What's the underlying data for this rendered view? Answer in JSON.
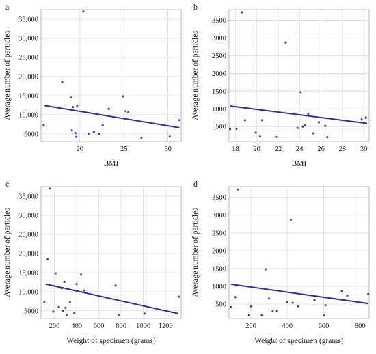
{
  "chart_data": [
    {
      "panel_label": "a",
      "type": "scatter",
      "xlabel": "BMI",
      "ylabel": "Average number of particles",
      "xlim": [
        15.6,
        31.5
      ],
      "ylim": [
        3000,
        37500
      ],
      "xticks": [
        20,
        25,
        30
      ],
      "yticks": [
        5000,
        10000,
        15000,
        20000,
        25000,
        30000,
        35000
      ],
      "xtick_labels": [
        "20",
        "25",
        "30"
      ],
      "ytick_labels": [
        "5000",
        "10,000",
        "15,000",
        "20,000",
        "25,000",
        "30,000",
        "35,000"
      ],
      "grid": true,
      "point_color": "#3a42c7",
      "line_color": "#2a2fa0",
      "points": [
        {
          "x": 15.9,
          "y": 7200
        },
        {
          "x": 18.0,
          "y": 18500
        },
        {
          "x": 19.0,
          "y": 14500
        },
        {
          "x": 19.2,
          "y": 12000
        },
        {
          "x": 19.1,
          "y": 5900
        },
        {
          "x": 19.5,
          "y": 5200
        },
        {
          "x": 19.6,
          "y": 4200
        },
        {
          "x": 19.7,
          "y": 12400
        },
        {
          "x": 20.4,
          "y": 37000
        },
        {
          "x": 21.0,
          "y": 5000
        },
        {
          "x": 21.6,
          "y": 5500
        },
        {
          "x": 22.2,
          "y": 5000
        },
        {
          "x": 22.6,
          "y": 7200
        },
        {
          "x": 23.3,
          "y": 11500
        },
        {
          "x": 24.9,
          "y": 14800
        },
        {
          "x": 25.2,
          "y": 10900
        },
        {
          "x": 25.5,
          "y": 10600
        },
        {
          "x": 27.0,
          "y": 4000
        },
        {
          "x": 30.2,
          "y": 4300
        },
        {
          "x": 31.3,
          "y": 8600
        }
      ],
      "fit_line": [
        {
          "x": 16.0,
          "y": 12400
        },
        {
          "x": 31.3,
          "y": 6600
        }
      ]
    },
    {
      "panel_label": "b",
      "type": "scatter",
      "xlabel": "BMI",
      "ylabel": "Average number of particles",
      "xlim": [
        17.4,
        30.5
      ],
      "ylim": [
        80,
        3800
      ],
      "xticks": [
        18,
        20,
        22,
        24,
        26,
        28,
        30
      ],
      "yticks": [
        500,
        1000,
        1500,
        2000,
        2500,
        3000,
        3500
      ],
      "xtick_labels": [
        "18",
        "20",
        "22",
        "24",
        "26",
        "28",
        "30"
      ],
      "ytick_labels": [
        "500",
        "1000",
        "1500",
        "2000",
        "2500",
        "3000",
        "3500"
      ],
      "grid": true,
      "point_color": "#3a42c7",
      "line_color": "#2a2fa0",
      "points": [
        {
          "x": 17.5,
          "y": 430
        },
        {
          "x": 18.1,
          "y": 440
        },
        {
          "x": 18.6,
          "y": 3720
        },
        {
          "x": 18.9,
          "y": 680
        },
        {
          "x": 19.9,
          "y": 330
        },
        {
          "x": 20.3,
          "y": 220
        },
        {
          "x": 20.5,
          "y": 680
        },
        {
          "x": 21.8,
          "y": 210
        },
        {
          "x": 22.7,
          "y": 2870
        },
        {
          "x": 23.8,
          "y": 460
        },
        {
          "x": 24.1,
          "y": 1470
        },
        {
          "x": 24.3,
          "y": 500
        },
        {
          "x": 24.5,
          "y": 540
        },
        {
          "x": 24.8,
          "y": 860
        },
        {
          "x": 25.3,
          "y": 310
        },
        {
          "x": 25.8,
          "y": 620
        },
        {
          "x": 26.4,
          "y": 520
        },
        {
          "x": 26.6,
          "y": 200
        },
        {
          "x": 29.8,
          "y": 700
        },
        {
          "x": 30.2,
          "y": 750
        }
      ],
      "fit_line": [
        {
          "x": 17.5,
          "y": 1080
        },
        {
          "x": 30.3,
          "y": 590
        }
      ]
    },
    {
      "panel_label": "c",
      "type": "scatter",
      "xlabel": "Weight of specimen (grams)",
      "ylabel": "Average number of particles",
      "xlim": [
        80,
        1340
      ],
      "ylim": [
        3000,
        37500
      ],
      "xticks": [
        200,
        400,
        600,
        800,
        1000,
        1200
      ],
      "yticks": [
        5000,
        10000,
        15000,
        20000,
        25000,
        30000,
        35000
      ],
      "xtick_labels": [
        "200",
        "400",
        "600",
        "800",
        "1000",
        "1200"
      ],
      "ytick_labels": [
        "5000",
        "10,000",
        "15,000",
        "20,000",
        "25,000",
        "30,000",
        "35,000"
      ],
      "grid": true,
      "point_color": "#3a42c7",
      "line_color": "#2a2fa0",
      "points": [
        {
          "x": 110,
          "y": 7200
        },
        {
          "x": 140,
          "y": 18500
        },
        {
          "x": 160,
          "y": 37000
        },
        {
          "x": 190,
          "y": 4800
        },
        {
          "x": 210,
          "y": 14800
        },
        {
          "x": 240,
          "y": 6000
        },
        {
          "x": 265,
          "y": 10900
        },
        {
          "x": 280,
          "y": 5000
        },
        {
          "x": 290,
          "y": 12600
        },
        {
          "x": 300,
          "y": 5800
        },
        {
          "x": 310,
          "y": 4000
        },
        {
          "x": 340,
          "y": 7200
        },
        {
          "x": 380,
          "y": 4400
        },
        {
          "x": 400,
          "y": 12000
        },
        {
          "x": 440,
          "y": 14500
        },
        {
          "x": 470,
          "y": 10300
        },
        {
          "x": 750,
          "y": 11600
        },
        {
          "x": 780,
          "y": 4000
        },
        {
          "x": 1010,
          "y": 4300
        },
        {
          "x": 1320,
          "y": 8700
        }
      ],
      "fit_line": [
        {
          "x": 120,
          "y": 12000
        },
        {
          "x": 1310,
          "y": 4300
        }
      ]
    },
    {
      "panel_label": "d",
      "type": "scatter",
      "xlabel": "Weight of specimen (grams)",
      "ylabel": "Average number of particles",
      "xlim": [
        80,
        850
      ],
      "ylim": [
        100,
        3800
      ],
      "xticks": [
        200,
        400,
        600,
        800
      ],
      "yticks": [
        500,
        1000,
        1500,
        2000,
        2500,
        3000,
        3500
      ],
      "xtick_labels": [
        "200",
        "400",
        "600",
        "800"
      ],
      "ytick_labels": [
        "500",
        "1000",
        "1500",
        "2000",
        "2500",
        "3000",
        "3500"
      ],
      "grid": true,
      "point_color": "#3a42c7",
      "line_color": "#2a2fa0",
      "points": [
        {
          "x": 90,
          "y": 420
        },
        {
          "x": 115,
          "y": 700
        },
        {
          "x": 130,
          "y": 3720
        },
        {
          "x": 190,
          "y": 200
        },
        {
          "x": 200,
          "y": 440
        },
        {
          "x": 260,
          "y": 200
        },
        {
          "x": 280,
          "y": 1480
        },
        {
          "x": 300,
          "y": 660
        },
        {
          "x": 320,
          "y": 320
        },
        {
          "x": 340,
          "y": 310
        },
        {
          "x": 400,
          "y": 560
        },
        {
          "x": 420,
          "y": 2870
        },
        {
          "x": 430,
          "y": 540
        },
        {
          "x": 460,
          "y": 440
        },
        {
          "x": 550,
          "y": 620
        },
        {
          "x": 600,
          "y": 200
        },
        {
          "x": 610,
          "y": 470
        },
        {
          "x": 700,
          "y": 860
        },
        {
          "x": 730,
          "y": 740
        },
        {
          "x": 845,
          "y": 780
        }
      ],
      "fit_line": [
        {
          "x": 90,
          "y": 1060
        },
        {
          "x": 845,
          "y": 520
        }
      ]
    }
  ]
}
